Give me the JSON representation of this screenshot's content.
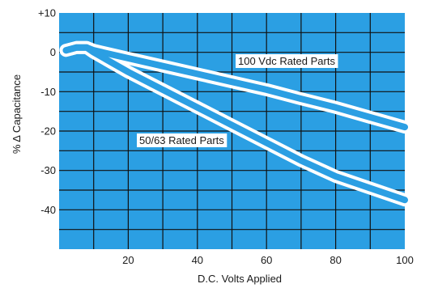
{
  "chart_data": {
    "type": "line",
    "title": "",
    "xlabel": "D.C. Volts Applied",
    "ylabel": "% Δ Capacitance",
    "xlim": [
      0,
      100
    ],
    "ylim": [
      -50,
      10
    ],
    "x_ticks": [
      {
        "value": 20,
        "label": "20"
      },
      {
        "value": 40,
        "label": "40"
      },
      {
        "value": 60,
        "label": "60"
      },
      {
        "value": 80,
        "label": "80"
      },
      {
        "value": 100,
        "label": "100"
      }
    ],
    "y_ticks": [
      {
        "value": 10,
        "label": "+10"
      },
      {
        "value": 0,
        "label": "0"
      },
      {
        "value": -10,
        "label": "-10"
      },
      {
        "value": -20,
        "label": "-20"
      },
      {
        "value": -30,
        "label": "-30"
      },
      {
        "value": -40,
        "label": "-40"
      }
    ],
    "grid": true,
    "colors": {
      "plot_background": "#2b9fe3",
      "series_line": "#2b9fe3",
      "grid": "#111111"
    },
    "series": [
      {
        "name": "100 Vdc Rated Parts",
        "x": [
          2,
          5,
          8,
          10,
          20,
          30,
          40,
          50,
          60,
          70,
          80,
          90,
          100
        ],
        "y": [
          0.5,
          1.2,
          1.2,
          0.5,
          -1.5,
          -3.5,
          -5.5,
          -7.5,
          -9.5,
          -11.8,
          -14,
          -16.5,
          -19
        ]
      },
      {
        "name": "50/63 Rated Parts",
        "x": [
          2,
          5,
          8,
          10,
          20,
          30,
          40,
          50,
          60,
          70,
          80,
          90,
          100
        ],
        "y": [
          0.5,
          1.2,
          1.2,
          0,
          -5,
          -9.5,
          -14,
          -18.5,
          -23,
          -27.5,
          -31.5,
          -34.5,
          -37.5
        ]
      }
    ]
  }
}
